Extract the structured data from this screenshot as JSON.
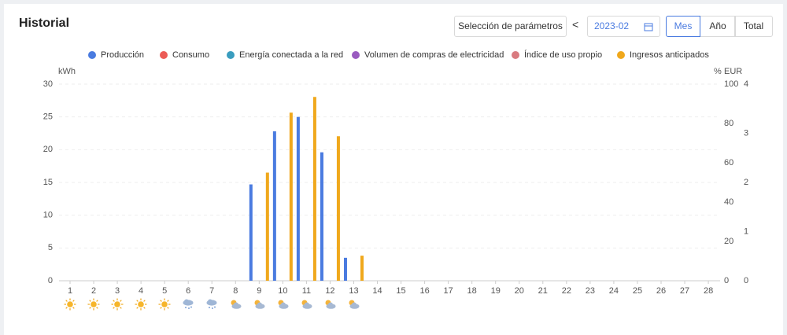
{
  "header": {
    "title": "Historial",
    "params_button": "Selección de parámetros",
    "prev": "<",
    "date": "2023-02",
    "tabs": [
      "Mes",
      "Año",
      "Total"
    ]
  },
  "chart_data": {
    "type": "bar",
    "y_label": "kWh",
    "y2_label": "%",
    "y3_label": "EUR",
    "categories": [
      "1",
      "2",
      "3",
      "4",
      "5",
      "6",
      "7",
      "8",
      "9",
      "10",
      "11",
      "12",
      "13",
      "14",
      "15",
      "16",
      "17",
      "18",
      "19",
      "20",
      "21",
      "22",
      "23",
      "24",
      "25",
      "26",
      "27",
      "28"
    ],
    "series": [
      {
        "name": "Producción",
        "color": "#4a7be0",
        "values": [
          0,
          0,
          0,
          0,
          0,
          0,
          0,
          0,
          14.7,
          22.8,
          25,
          19.6,
          3.5,
          null,
          null,
          null,
          null,
          null,
          null,
          null,
          null,
          null,
          null,
          null,
          null,
          null,
          null,
          null
        ]
      },
      {
        "name": "Consumo",
        "color": "#ec5b56",
        "values": [
          null,
          null,
          null,
          null,
          null,
          null,
          null,
          null,
          null,
          null,
          null,
          null,
          null,
          null,
          null,
          null,
          null,
          null,
          null,
          null,
          null,
          null,
          null,
          null,
          null,
          null,
          null,
          null
        ]
      },
      {
        "name": "Energía conectada a la red",
        "color": "#3a9dbf",
        "values": [
          null,
          null,
          null,
          null,
          null,
          null,
          null,
          null,
          null,
          null,
          null,
          null,
          null,
          null,
          null,
          null,
          null,
          null,
          null,
          null,
          null,
          null,
          null,
          null,
          null,
          null,
          null,
          null
        ]
      },
      {
        "name": "Volumen de compras de electricidad",
        "color": "#9a5bc0",
        "values": [
          null,
          null,
          null,
          null,
          null,
          null,
          null,
          null,
          null,
          null,
          null,
          null,
          null,
          null,
          null,
          null,
          null,
          null,
          null,
          null,
          null,
          null,
          null,
          null,
          null,
          null,
          null,
          null
        ]
      },
      {
        "name": "Índice de uso propio",
        "color": "#d97b80",
        "axis": "y2",
        "values": [
          null,
          null,
          null,
          null,
          null,
          null,
          null,
          null,
          null,
          null,
          null,
          null,
          null,
          null,
          null,
          null,
          null,
          null,
          null,
          null,
          null,
          null,
          null,
          null,
          null,
          null,
          null,
          null
        ]
      },
      {
        "name": "Ingresos anticipados",
        "color": "#f0a81c",
        "axis": "y3",
        "values": [
          0,
          0,
          0,
          0,
          0,
          0,
          0,
          0,
          2.2,
          3.42,
          3.74,
          2.94,
          0.51,
          null,
          null,
          null,
          null,
          null,
          null,
          null,
          null,
          null,
          null,
          null,
          null,
          null,
          null,
          null
        ]
      }
    ],
    "ylim": [
      0,
      30
    ],
    "yticks": [
      0,
      5,
      10,
      15,
      20,
      25,
      30
    ],
    "y2lim": [
      0,
      100
    ],
    "y2ticks": [
      0,
      20,
      40,
      60,
      80,
      100
    ],
    "y3lim": [
      0,
      4
    ],
    "y3ticks": [
      0,
      1,
      2,
      3,
      4
    ],
    "grid": true
  }
}
